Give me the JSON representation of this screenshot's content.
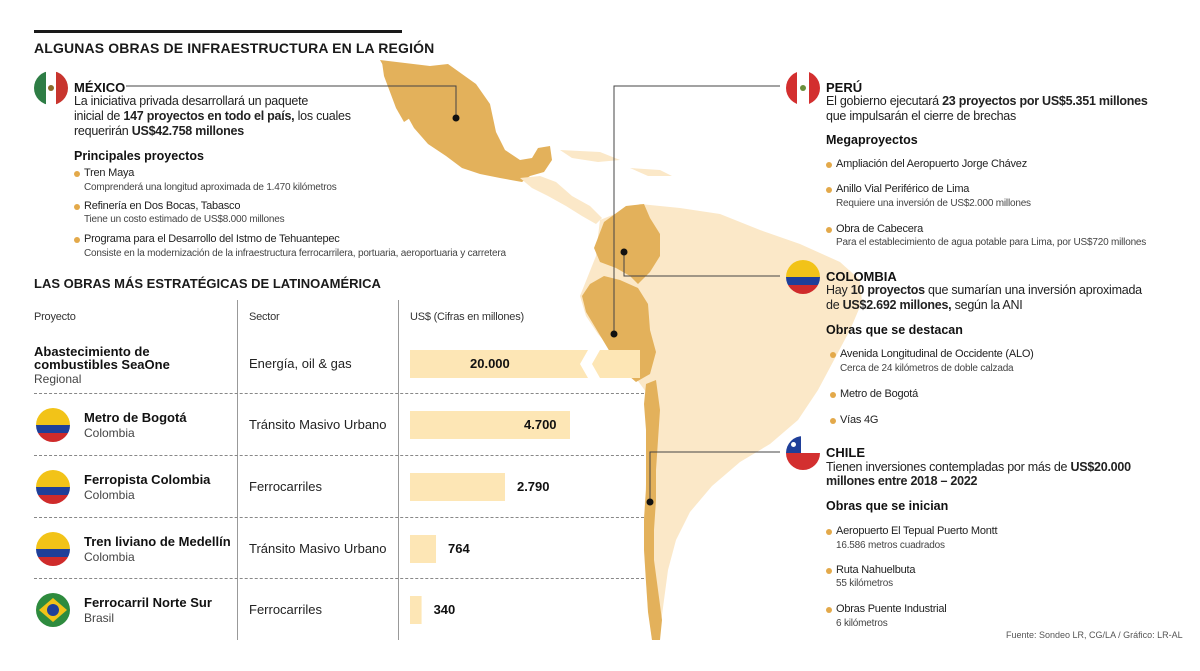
{
  "title": "ALGUNAS OBRAS DE INFRAESTRUCTURA EN LA REGIÓN",
  "colors": {
    "map_highlight": "#e3b15b",
    "map_base": "#fbe8c8",
    "bar": "#fde6b5",
    "dot": "#e3a94a"
  },
  "mexico": {
    "name": "MÉXICO",
    "line1": "La iniciativa privada desarrollará un paquete",
    "line2a": "inicial de ",
    "line2b": "147 proyectos en todo el país,",
    "line2c": " los cuales",
    "line3a": "requerirán ",
    "line3b": "US$42.758 millones",
    "sub": "Principales proyectos",
    "items": [
      {
        "label": "Tren Maya",
        "desc": "Comprenderá una longitud aproximada de 1.470 kilómetros"
      },
      {
        "label": "Refinería en Dos Bocas, Tabasco",
        "desc": "Tiene un costo estimado de US$8.000 millones"
      },
      {
        "label": "Programa para el Desarrollo del Istmo de Tehuantepec",
        "desc": "Consiste en la modernización de la infraestructura ferrocarrilera, portuaria, aeroportuaria y carretera"
      }
    ]
  },
  "peru": {
    "name": "PERÚ",
    "line1a": "El gobierno ejecutará ",
    "line1b": "23 proyectos por US$5.351 millones",
    "line2": "que impulsarán el cierre de brechas",
    "sub": "Megaproyectos",
    "items": [
      {
        "label": "Ampliación del Aeropuerto Jorge Chávez",
        "desc": ""
      },
      {
        "label": "Anillo Vial Periférico de Lima",
        "desc": "Requiere una inversión de US$2.000 millones"
      },
      {
        "label": "Obra de Cabecera",
        "desc": "Para el establecimiento de agua potable para Lima, por US$720 millones"
      }
    ]
  },
  "colombia": {
    "name": "COLOMBIA",
    "line1a": "Hay ",
    "line1b": "10 proyectos",
    "line1c": " que sumarían una inversión aproximada",
    "line2a": "de ",
    "line2b": "US$2.692 millones,",
    "line2c": " según la ANI",
    "sub": "Obras que se destacan",
    "items": [
      {
        "label": "Avenida Longitudinal de Occidente (ALO)",
        "desc": "Cerca de 24 kilómetros de doble calzada"
      },
      {
        "label": "Metro de Bogotá",
        "desc": ""
      },
      {
        "label": "Vías 4G",
        "desc": ""
      }
    ]
  },
  "chile": {
    "name": "CHILE",
    "line1a": "Tienen inversiones contempladas por más de ",
    "line1b": "US$20.000",
    "line2": "millones entre 2018 – 2022",
    "sub": "Obras que se inician",
    "items": [
      {
        "label": "Aeropuerto El Tepual Puerto Montt",
        "desc": "16.586 metros cuadrados"
      },
      {
        "label": "Ruta Nahuelbuta",
        "desc": "55 kilómetros"
      },
      {
        "label": "Obras Puente Industrial",
        "desc": "6 kilómetros"
      }
    ]
  },
  "table": {
    "title": "LAS OBRAS MÁS ESTRATÉGICAS DE LATINOAMÉRICA",
    "col_project": "Proyecto",
    "col_sector": "Sector",
    "col_value": "US$ (Cifras en millones)"
  },
  "chart_data": {
    "type": "bar",
    "orientation": "horizontal",
    "title": "LAS OBRAS MÁS ESTRATÉGICAS DE LATINOAMÉRICA",
    "value_label": "US$ (Cifras en millones)",
    "axis_break": true,
    "rows": [
      {
        "project": "Abastecimiento de combustibles SeaOne",
        "project_line1": "Abastecimiento de",
        "project_line2": "combustibles SeaOne",
        "country": "Regional",
        "sector": "Energía, oil & gas",
        "value": 20000,
        "value_label": "20.000",
        "flag": ""
      },
      {
        "project": "Metro de Bogotá",
        "country": "Colombia",
        "sector": "Tránsito Masivo Urbano",
        "value": 4700,
        "value_label": "4.700",
        "flag": "colombia"
      },
      {
        "project": "Ferropista Colombia",
        "country": "Colombia",
        "sector": "Ferrocarriles",
        "value": 2790,
        "value_label": "2.790",
        "flag": "colombia"
      },
      {
        "project": "Tren liviano de Medellín",
        "country": "Colombia",
        "sector": "Tránsito Masivo Urbano",
        "value": 764,
        "value_label": "764",
        "flag": "colombia"
      },
      {
        "project": "Ferrocarril Norte Sur",
        "country": "Brasil",
        "sector": "Ferrocarriles",
        "value": 340,
        "value_label": "340",
        "flag": "brasil"
      }
    ]
  },
  "source": "Fuente: Sondeo LR, CG/LA / Gráfico: LR-AL"
}
